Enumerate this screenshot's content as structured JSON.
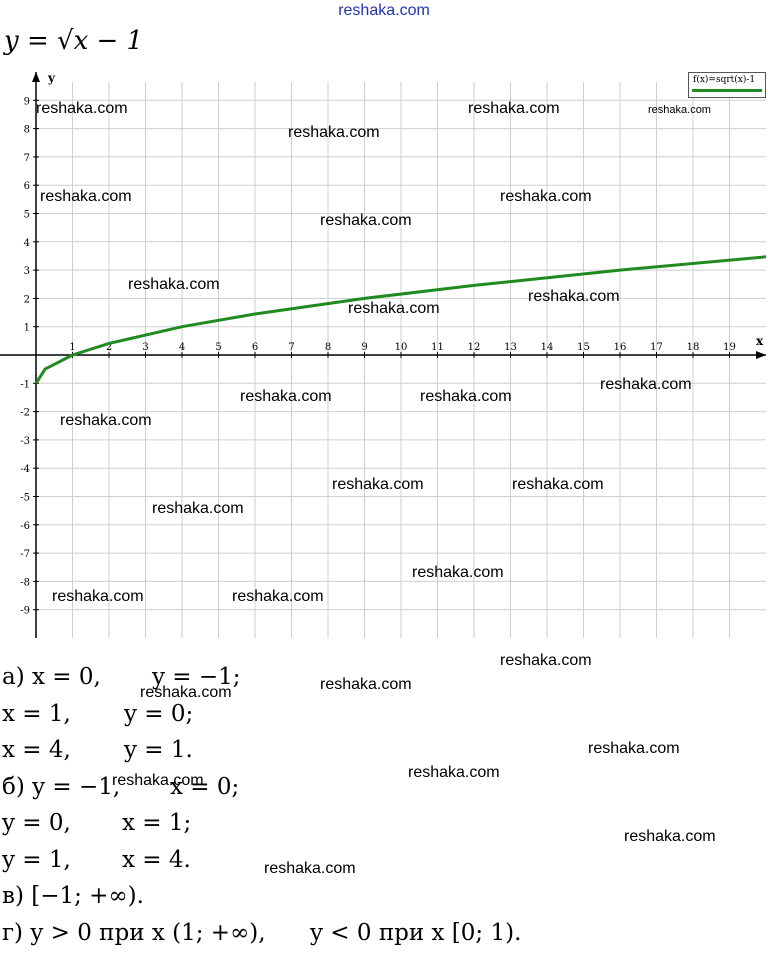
{
  "header": {
    "site_link": "reshaka.com"
  },
  "formula": {
    "text": "y = √x − 1"
  },
  "legend": {
    "label": "f(x)=sqrt(x)-1",
    "color": "#1f8a1f"
  },
  "chart_data": {
    "type": "line",
    "title": "",
    "xlabel": "x",
    "ylabel": "y",
    "xlim": [
      0,
      20
    ],
    "ylim": [
      -10,
      10
    ],
    "x_ticks": [
      "1",
      "2",
      "3",
      "4",
      "5",
      "6",
      "7",
      "8",
      "9",
      "10",
      "11",
      "12",
      "13",
      "14",
      "15",
      "16",
      "17",
      "18",
      "19"
    ],
    "y_ticks": [
      "9",
      "8",
      "7",
      "6",
      "5",
      "4",
      "3",
      "2",
      "1",
      "-1",
      "-2",
      "-3",
      "-4",
      "-5",
      "-6",
      "-7",
      "-8",
      "-9"
    ],
    "grid": true,
    "series": [
      {
        "name": "f(x)=sqrt(x)-1",
        "color": "#1f8a1f",
        "x": [
          0,
          0.25,
          1,
          2,
          4,
          6,
          9,
          12,
          16,
          20
        ],
        "y": [
          -1,
          -0.5,
          0,
          0.41,
          1,
          1.45,
          2,
          2.46,
          3,
          3.47
        ]
      }
    ]
  },
  "answers": [
    {
      "left": "а) x = 0,",
      "right": "y = −1;"
    },
    {
      "left": "x = 1,",
      "right": "y = 0;"
    },
    {
      "left": "x = 4,",
      "right": "y = 1."
    },
    {
      "left": "б) y = −1,",
      "right": "x = 0;"
    },
    {
      "left": "y = 0,",
      "right": "x = 1;"
    },
    {
      "left": "y = 1,",
      "right": "x = 4."
    },
    {
      "left": "в) [−1; +∞).",
      "right": ""
    },
    {
      "left": "г) y > 0 при x (1; +∞),",
      "right": "y < 0 при x [0; 1)."
    }
  ],
  "watermarks": [
    "reshaka.com",
    "reshaka.com",
    "reshaka.com",
    "reshaka.com",
    "reshaka.com",
    "reshaka.com",
    "reshaka.com",
    "reshaka.com",
    "reshaka.com",
    "reshaka.com",
    "reshaka.com",
    "reshaka.com",
    "reshaka.com",
    "reshaka.com",
    "reshaka.com",
    "reshaka.com",
    "reshaka.com",
    "reshaka.com",
    "reshaka.com",
    "reshaka.com",
    "reshaka.com",
    "reshaka.com",
    "reshaka.com",
    "reshaka.com",
    "reshaka.com",
    "reshaka.com",
    "reshaka.com",
    "reshaka.com"
  ]
}
